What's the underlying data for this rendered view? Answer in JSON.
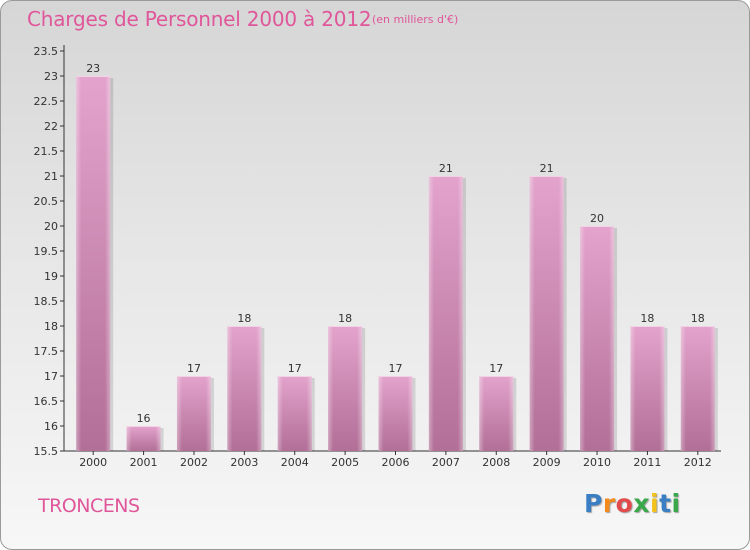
{
  "header": {
    "title": "Charges de Personnel 2000 à 2012",
    "unit": "(en milliers d'€)"
  },
  "footer": {
    "commune": "TRONCENS",
    "logo": "Proxiti"
  },
  "colors": {
    "title": "#e0569a",
    "bar_top": "#e3a3cc",
    "bar_bottom": "#b26f97",
    "axis": "#333333"
  },
  "chart_data": {
    "type": "bar",
    "categories": [
      "2000",
      "2001",
      "2002",
      "2003",
      "2004",
      "2005",
      "2006",
      "2007",
      "2008",
      "2009",
      "2010",
      "2011",
      "2012"
    ],
    "values": [
      23,
      16,
      17,
      18,
      17,
      18,
      17,
      21,
      17,
      21,
      20,
      18,
      18
    ],
    "y_ticks": [
      "15.5",
      "16",
      "16.5",
      "17",
      "17.5",
      "18",
      "18.5",
      "19",
      "19.5",
      "20",
      "20.5",
      "21",
      "21.5",
      "22",
      "22.5",
      "23",
      "23.5"
    ],
    "ylim": [
      15.5,
      23.5
    ],
    "grid": false
  }
}
